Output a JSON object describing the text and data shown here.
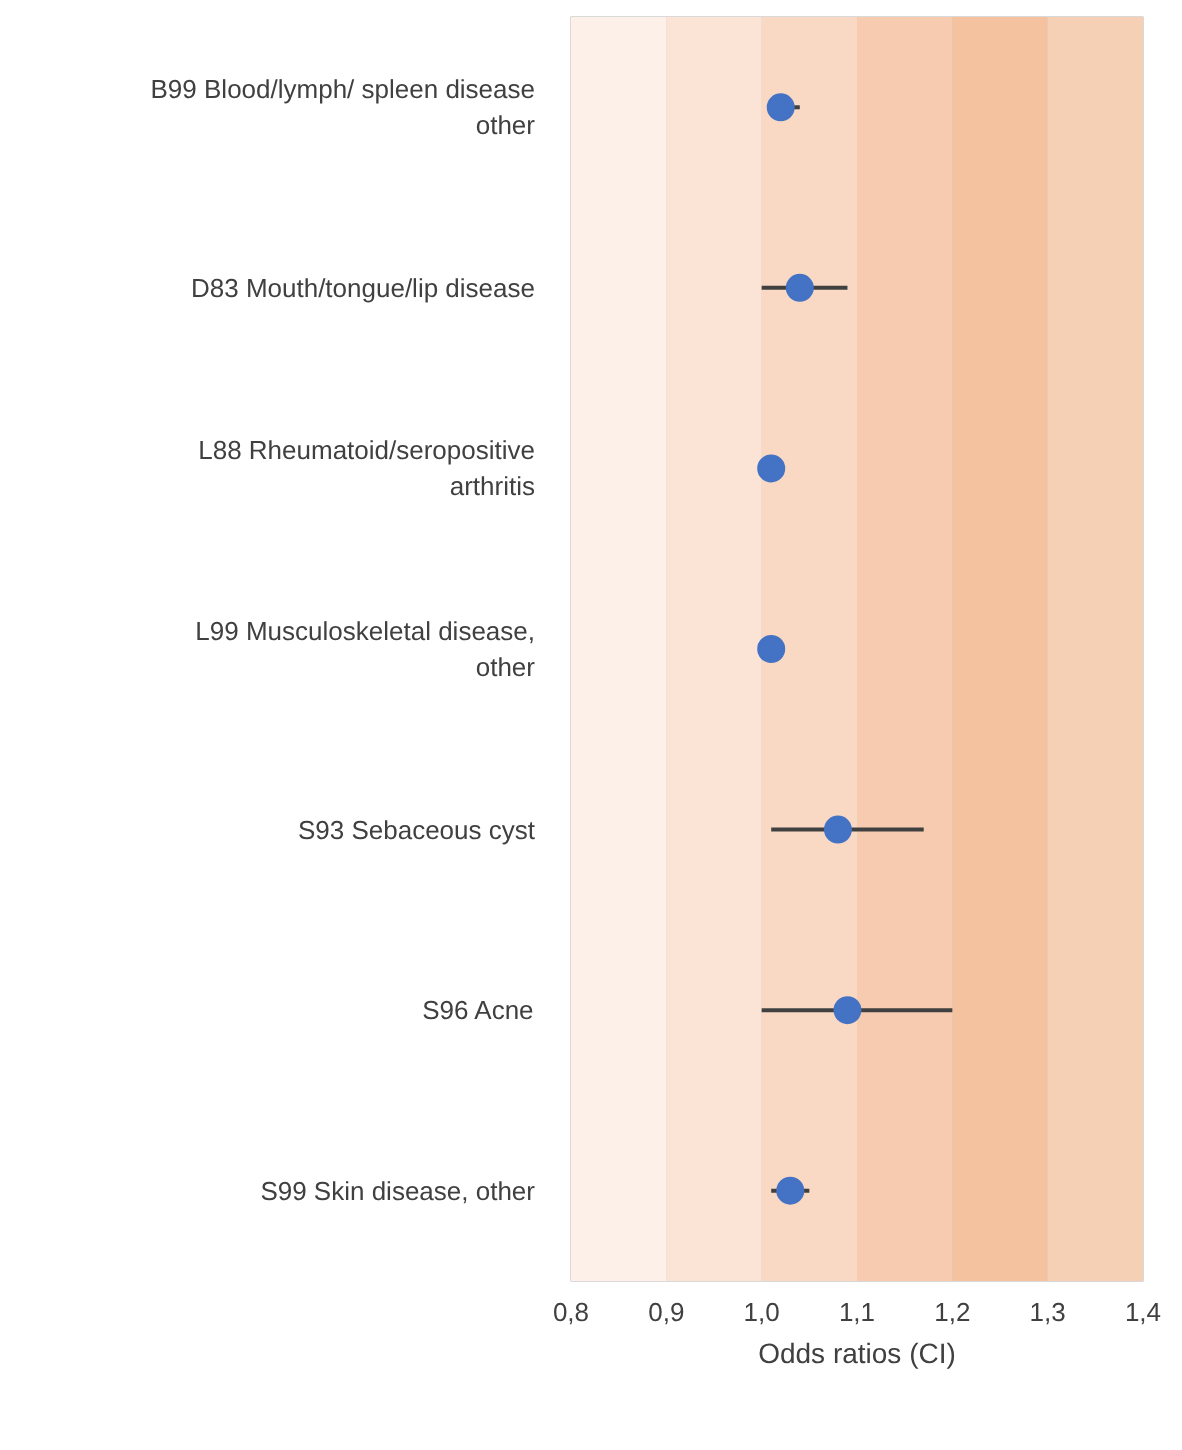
{
  "chart_data": {
    "type": "scatter",
    "orientation": "horizontal",
    "xlabel": "Odds ratios (CI)",
    "categories": [
      "B99 Blood/lymph/ spleen disease other",
      "D83 Mouth/tongue/lip disease",
      "L88 Rheumatoid/seropositive arthritis",
      "L99 Musculoskeletal disease, other",
      "S93 Sebaceous cyst",
      "S96 Acne",
      "S99 Skin disease, other"
    ],
    "series": [
      {
        "color": "#4472c4",
        "values": [
          1.02,
          1.04,
          1.01,
          1.01,
          1.08,
          1.09,
          1.03
        ],
        "errors": [
          [
            1.01,
            1.04
          ],
          [
            1.0,
            1.09
          ],
          null,
          null,
          [
            1.01,
            1.17
          ],
          [
            1.0,
            1.2
          ],
          [
            1.01,
            1.05
          ]
        ]
      }
    ],
    "xlim": [
      0.8,
      1.4
    ],
    "xticks": [
      {
        "value": 0.8,
        "label": "0,8"
      },
      {
        "value": 0.9,
        "label": "0,9"
      },
      {
        "value": 1.0,
        "label": "1,0"
      },
      {
        "value": 1.1,
        "label": "1,1"
      },
      {
        "value": 1.2,
        "label": "1,2"
      },
      {
        "value": 1.3,
        "label": "1,3"
      },
      {
        "value": 1.4,
        "label": "1,4"
      }
    ],
    "bands": [
      {
        "axis": "x",
        "from": 0.8,
        "to": 0.9,
        "color": "#fdf0e8"
      },
      {
        "axis": "x",
        "from": 0.9,
        "to": 1.0,
        "color": "#fbe4d6"
      },
      {
        "axis": "x",
        "from": 1.0,
        "to": 1.1,
        "color": "#f9d9c4"
      },
      {
        "axis": "x",
        "from": 1.1,
        "to": 1.2,
        "color": "#f7cbb0"
      },
      {
        "axis": "x",
        "from": 1.2,
        "to": 1.3,
        "color": "#f4c29f"
      },
      {
        "axis": "x",
        "from": 1.3,
        "to": 1.4,
        "color": "#f6d0b4"
      }
    ],
    "grid": "x",
    "marker": "circle"
  }
}
